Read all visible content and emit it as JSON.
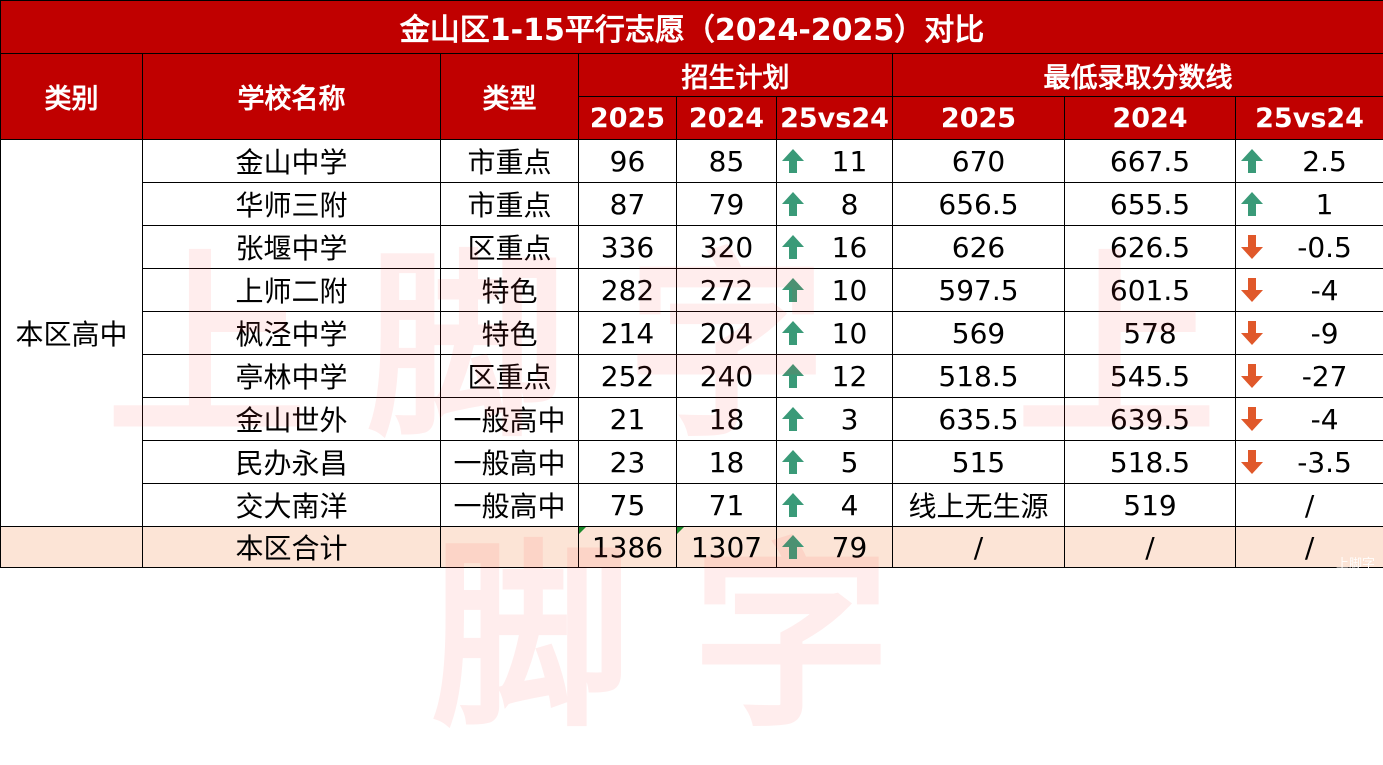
{
  "title": "金山区1-15平行志愿（2024-2025）对比",
  "headers": {
    "category": "类别",
    "school": "学校名称",
    "type": "类型",
    "enroll_group": "招生计划",
    "score_group": "最低录取分数线",
    "y2025": "2025",
    "y2024": "2024",
    "vs": "25vs24"
  },
  "category_label": "本区高中",
  "rows": [
    {
      "school": "金山中学",
      "type": "市重点",
      "e2025": "96",
      "e2024": "85",
      "ediff": "11",
      "ediff_dir": "up",
      "s2025": "670",
      "s2024": "667.5",
      "sdiff": "2.5",
      "sdiff_dir": "up"
    },
    {
      "school": "华师三附",
      "type": "市重点",
      "e2025": "87",
      "e2024": "79",
      "ediff": "8",
      "ediff_dir": "up",
      "s2025": "656.5",
      "s2024": "655.5",
      "sdiff": "1",
      "sdiff_dir": "up"
    },
    {
      "school": "张堰中学",
      "type": "区重点",
      "e2025": "336",
      "e2024": "320",
      "ediff": "16",
      "ediff_dir": "up",
      "s2025": "626",
      "s2024": "626.5",
      "sdiff": "-0.5",
      "sdiff_dir": "down"
    },
    {
      "school": "上师二附",
      "type": "特色",
      "e2025": "282",
      "e2024": "272",
      "ediff": "10",
      "ediff_dir": "up",
      "s2025": "597.5",
      "s2024": "601.5",
      "sdiff": "-4",
      "sdiff_dir": "down"
    },
    {
      "school": "枫泾中学",
      "type": "特色",
      "e2025": "214",
      "e2024": "204",
      "ediff": "10",
      "ediff_dir": "up",
      "s2025": "569",
      "s2024": "578",
      "sdiff": "-9",
      "sdiff_dir": "down"
    },
    {
      "school": "亭林中学",
      "type": "区重点",
      "e2025": "252",
      "e2024": "240",
      "ediff": "12",
      "ediff_dir": "up",
      "s2025": "518.5",
      "s2024": "545.5",
      "sdiff": "-27",
      "sdiff_dir": "down"
    },
    {
      "school": "金山世外",
      "type": "一般高中",
      "e2025": "21",
      "e2024": "18",
      "ediff": "3",
      "ediff_dir": "up",
      "s2025": "635.5",
      "s2024": "639.5",
      "sdiff": "-4",
      "sdiff_dir": "down"
    },
    {
      "school": "民办永昌",
      "type": "一般高中",
      "e2025": "23",
      "e2024": "18",
      "ediff": "5",
      "ediff_dir": "up",
      "s2025": "515",
      "s2024": "518.5",
      "sdiff": "-3.5",
      "sdiff_dir": "down"
    },
    {
      "school": "交大南洋",
      "type": "一般高中",
      "e2025": "75",
      "e2024": "71",
      "ediff": "4",
      "ediff_dir": "up",
      "s2025": "线上无生源",
      "s2024": "519",
      "sdiff": "/",
      "sdiff_dir": "none"
    }
  ],
  "total": {
    "label": "本区合计",
    "e2025": "1386",
    "e2024": "1307",
    "ediff": "79",
    "ediff_dir": "up",
    "s2025": "/",
    "s2024": "/",
    "sdiff": "/"
  },
  "watermark": "上脚字 上脚字",
  "corner_watermark": "上脚字",
  "colors": {
    "header_bg": "#c00000",
    "header_text": "#ffffff",
    "total_bg": "#fce4d6",
    "up_arrow": "#3a9a78",
    "down_arrow": "#e0582a"
  },
  "icons": {
    "up": "arrow-up-icon",
    "down": "arrow-down-icon"
  }
}
